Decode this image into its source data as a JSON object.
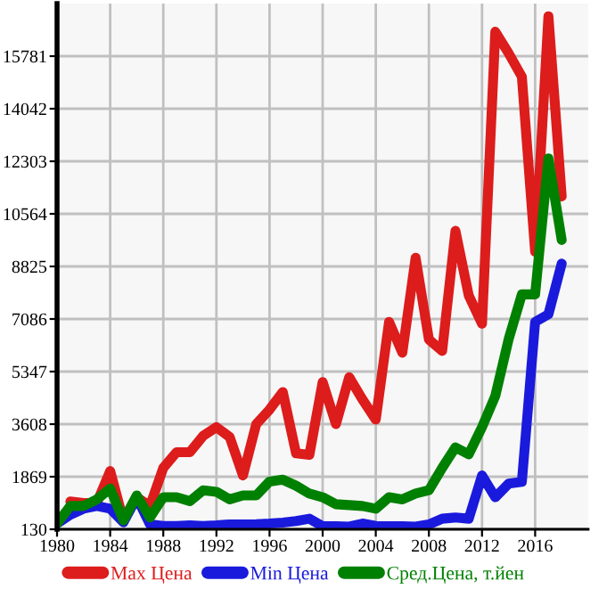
{
  "chart_data": {
    "type": "line",
    "x": [
      1980,
      1981,
      1982,
      1983,
      1984,
      1985,
      1986,
      1987,
      1988,
      1989,
      1990,
      1991,
      1992,
      1993,
      1994,
      1995,
      1996,
      1997,
      1998,
      1999,
      2000,
      2001,
      2002,
      2003,
      2004,
      2005,
      2006,
      2007,
      2008,
      2009,
      2010,
      2011,
      2012,
      2013,
      2014,
      2015,
      2016,
      2017,
      2018
    ],
    "series": [
      {
        "name": "Max Цена",
        "color": "#dd1c1c",
        "values": [
          null,
          1050,
          1000,
          1000,
          2060,
          420,
          1190,
          900,
          2160,
          2680,
          2680,
          3220,
          3510,
          3180,
          1910,
          3610,
          4090,
          4670,
          2640,
          2590,
          5000,
          3610,
          5160,
          4420,
          3760,
          6990,
          5970,
          9110,
          6410,
          6030,
          10000,
          7860,
          6930,
          16590,
          15880,
          15100,
          9310,
          17100,
          11140
        ]
      },
      {
        "name": "Min Цена",
        "color": "#1a1add",
        "values": [
          320,
          610,
          810,
          900,
          810,
          360,
          1190,
          290,
          240,
          240,
          260,
          240,
          260,
          290,
          290,
          300,
          320,
          350,
          400,
          480,
          230,
          230,
          220,
          320,
          240,
          230,
          230,
          220,
          290,
          480,
          520,
          480,
          1910,
          1190,
          1640,
          1700,
          6990,
          7240,
          8920
        ]
      },
      {
        "name": "Сред.Цена, т.йен",
        "color": "#008000",
        "values": [
          320,
          900,
          900,
          1120,
          1480,
          420,
          1250,
          520,
          1190,
          1190,
          1060,
          1420,
          1370,
          1120,
          1250,
          1250,
          1710,
          1770,
          1570,
          1310,
          1190,
          960,
          930,
          900,
          810,
          1190,
          1120,
          1310,
          1420,
          2160,
          2840,
          2610,
          3510,
          4540,
          6410,
          7900,
          7900,
          12400,
          9700
        ]
      }
    ],
    "xlim": [
      1980,
      2020
    ],
    "xticks": [
      1980,
      1984,
      1988,
      1992,
      1996,
      2000,
      2004,
      2008,
      2012,
      2016
    ],
    "ylim": [
      130,
      17520
    ],
    "yticks": [
      130,
      1869,
      3608,
      5347,
      7086,
      8825,
      10564,
      12303,
      14042,
      15781
    ],
    "grid": true,
    "legend": "bottom",
    "marker": "none",
    "line_style": "solid"
  }
}
